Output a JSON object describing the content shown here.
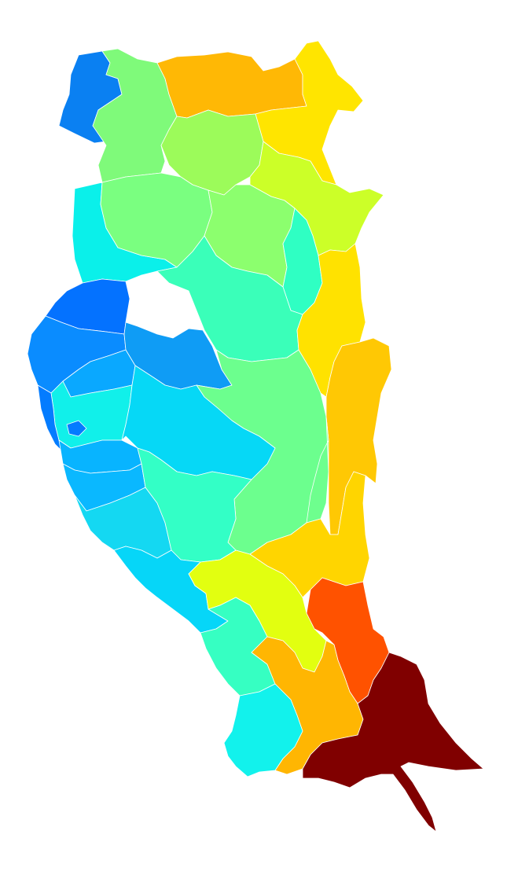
{
  "map": {
    "type": "choropleth",
    "colormap": "jet",
    "legend": "none",
    "regions": [
      {
        "id": "r01",
        "color": "#0a80f2"
      },
      {
        "id": "r02",
        "color": "#7ffa7a"
      },
      {
        "id": "r03",
        "color": "#ffb805"
      },
      {
        "id": "r04",
        "color": "#ffe500"
      },
      {
        "id": "r05",
        "color": "#9cfb5a"
      },
      {
        "id": "r06",
        "color": "#ccff28"
      },
      {
        "id": "r07",
        "color": "#0af0ea"
      },
      {
        "id": "r08",
        "color": "#7aff80"
      },
      {
        "id": "r09",
        "color": "#8cff6e"
      },
      {
        "id": "r10",
        "color": "#2fffc3"
      },
      {
        "id": "r11",
        "color": "#3affb9"
      },
      {
        "id": "r12",
        "color": "#0472ff"
      },
      {
        "id": "r13",
        "color": "#0a8cff"
      },
      {
        "id": "r14",
        "color": "#0aa8ff"
      },
      {
        "id": "r15",
        "color": "#0f9cf5"
      },
      {
        "id": "r16",
        "color": "#6cff8e"
      },
      {
        "id": "r17",
        "color": "#ffe200"
      },
      {
        "id": "r18",
        "color": "#ffc804"
      },
      {
        "id": "r19",
        "color": "#11f0ea"
      },
      {
        "id": "r20",
        "color": "#06d8f6"
      },
      {
        "id": "r21",
        "color": "#047cff"
      },
      {
        "id": "r22",
        "color": "#08b4ff"
      },
      {
        "id": "r23",
        "color": "#0ab8ff"
      },
      {
        "id": "r24",
        "color": "#14d8f2"
      },
      {
        "id": "r25",
        "color": "#33ffc6"
      },
      {
        "id": "r26",
        "color": "#6eff8e"
      },
      {
        "id": "r27",
        "color": "#ffd500"
      },
      {
        "id": "r28",
        "color": "#06d6f8"
      },
      {
        "id": "r29",
        "color": "#e2ff10"
      },
      {
        "id": "r30",
        "color": "#ff5200"
      },
      {
        "id": "r31",
        "color": "#36ffc2"
      },
      {
        "id": "r32",
        "color": "#ffb602"
      },
      {
        "id": "r33",
        "color": "#12f2ec"
      },
      {
        "id": "r34",
        "color": "#800000"
      }
    ]
  }
}
